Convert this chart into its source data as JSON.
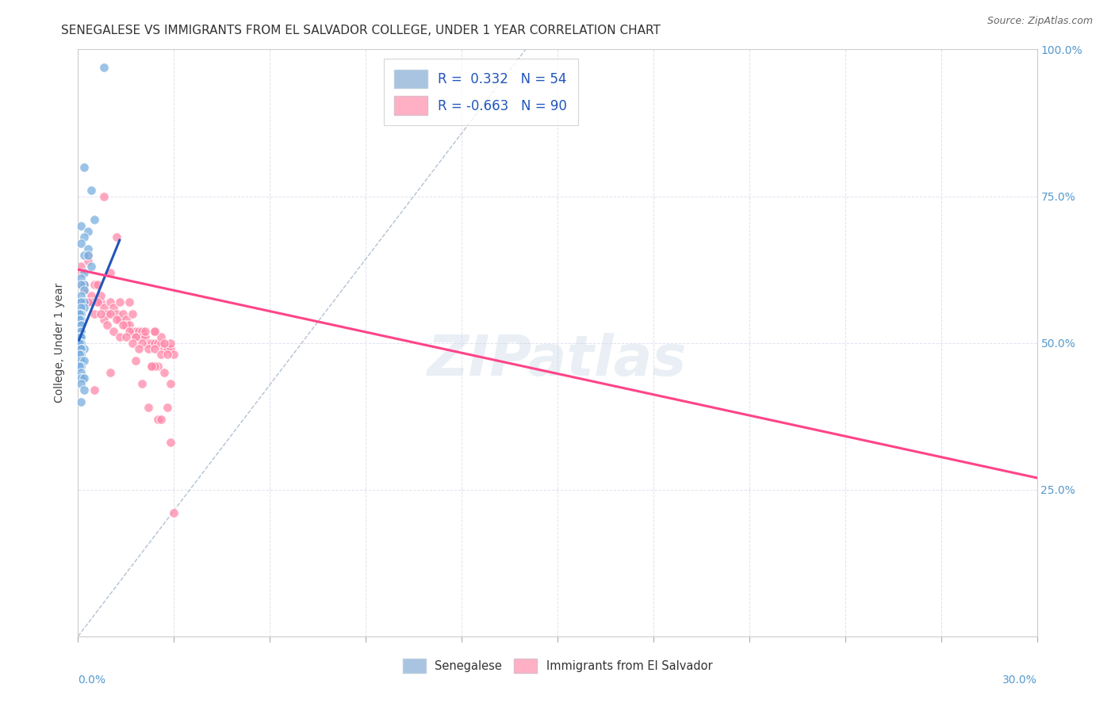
{
  "title": "SENEGALESE VS IMMIGRANTS FROM EL SALVADOR COLLEGE, UNDER 1 YEAR CORRELATION CHART",
  "source": "Source: ZipAtlas.com",
  "ylabel": "College, Under 1 year",
  "xlim": [
    0.0,
    0.3
  ],
  "ylim": [
    0.0,
    1.0
  ],
  "blue_x": [
    0.008,
    0.002,
    0.004,
    0.005,
    0.001,
    0.003,
    0.002,
    0.001,
    0.003,
    0.002,
    0.003,
    0.004,
    0.002,
    0.001,
    0.002,
    0.001,
    0.002,
    0.001,
    0.001,
    0.002,
    0.001,
    0.002,
    0.001,
    0.001,
    0.001,
    0.0005,
    0.001,
    0.0005,
    0.001,
    0.001,
    0.0005,
    0.001,
    0.0005,
    0.001,
    0.001,
    0.001,
    0.001,
    0.0005,
    0.002,
    0.001,
    0.001,
    0.001,
    0.0005,
    0.001,
    0.002,
    0.001,
    0.0005,
    0.001,
    0.0015,
    0.001,
    0.002,
    0.001,
    0.002,
    0.001
  ],
  "blue_y": [
    0.97,
    0.8,
    0.76,
    0.71,
    0.7,
    0.69,
    0.68,
    0.67,
    0.66,
    0.65,
    0.65,
    0.63,
    0.62,
    0.61,
    0.6,
    0.6,
    0.59,
    0.58,
    0.57,
    0.57,
    0.57,
    0.56,
    0.56,
    0.55,
    0.55,
    0.55,
    0.54,
    0.54,
    0.53,
    0.53,
    0.52,
    0.52,
    0.51,
    0.51,
    0.51,
    0.5,
    0.5,
    0.5,
    0.49,
    0.49,
    0.49,
    0.48,
    0.48,
    0.47,
    0.47,
    0.46,
    0.46,
    0.45,
    0.44,
    0.44,
    0.44,
    0.43,
    0.42,
    0.4
  ],
  "pink_x": [
    0.001,
    0.002,
    0.003,
    0.005,
    0.006,
    0.001,
    0.003,
    0.004,
    0.005,
    0.006,
    0.007,
    0.007,
    0.008,
    0.009,
    0.01,
    0.01,
    0.011,
    0.012,
    0.013,
    0.013,
    0.014,
    0.015,
    0.015,
    0.016,
    0.017,
    0.017,
    0.018,
    0.018,
    0.019,
    0.02,
    0.02,
    0.021,
    0.021,
    0.022,
    0.023,
    0.024,
    0.024,
    0.025,
    0.026,
    0.026,
    0.027,
    0.028,
    0.029,
    0.029,
    0.03,
    0.002,
    0.004,
    0.006,
    0.008,
    0.01,
    0.012,
    0.014,
    0.016,
    0.018,
    0.02,
    0.022,
    0.024,
    0.026,
    0.028,
    0.001,
    0.003,
    0.005,
    0.007,
    0.009,
    0.011,
    0.013,
    0.015,
    0.017,
    0.019,
    0.023,
    0.025,
    0.027,
    0.029,
    0.008,
    0.012,
    0.016,
    0.005,
    0.01,
    0.018,
    0.024,
    0.02,
    0.025,
    0.028,
    0.022,
    0.026,
    0.029,
    0.027,
    0.024,
    0.023,
    0.03
  ],
  "pink_y": [
    0.62,
    0.6,
    0.65,
    0.6,
    0.6,
    0.63,
    0.64,
    0.58,
    0.57,
    0.57,
    0.57,
    0.58,
    0.56,
    0.55,
    0.62,
    0.57,
    0.56,
    0.55,
    0.54,
    0.57,
    0.55,
    0.54,
    0.53,
    0.53,
    0.52,
    0.55,
    0.52,
    0.51,
    0.52,
    0.52,
    0.51,
    0.51,
    0.52,
    0.5,
    0.5,
    0.5,
    0.52,
    0.5,
    0.5,
    0.51,
    0.49,
    0.49,
    0.49,
    0.5,
    0.48,
    0.59,
    0.57,
    0.57,
    0.54,
    0.55,
    0.54,
    0.53,
    0.52,
    0.51,
    0.5,
    0.49,
    0.49,
    0.48,
    0.48,
    0.6,
    0.57,
    0.55,
    0.55,
    0.53,
    0.52,
    0.51,
    0.51,
    0.5,
    0.49,
    0.46,
    0.46,
    0.45,
    0.43,
    0.75,
    0.68,
    0.57,
    0.42,
    0.45,
    0.47,
    0.46,
    0.43,
    0.37,
    0.39,
    0.39,
    0.37,
    0.33,
    0.5,
    0.52,
    0.46,
    0.21
  ],
  "blue_line_x": [
    0.0003,
    0.013
  ],
  "blue_line_y": [
    0.505,
    0.675
  ],
  "pink_line_x": [
    0.0,
    0.3
  ],
  "pink_line_y": [
    0.625,
    0.27
  ],
  "diag_line_x": [
    0.0,
    0.14
  ],
  "diag_line_y": [
    0.0,
    1.0
  ],
  "scatter_blue_color": "#7aafe0",
  "scatter_pink_color": "#ff88aa",
  "line_blue_color": "#2255bb",
  "line_pink_color": "#ff4488",
  "diag_color": "#aabbcc",
  "background_color": "#ffffff",
  "title_fontsize": 11,
  "axis_label_fontsize": 10,
  "tick_fontsize": 10,
  "source_fontsize": 9,
  "right_tick_color": "#5599cc"
}
